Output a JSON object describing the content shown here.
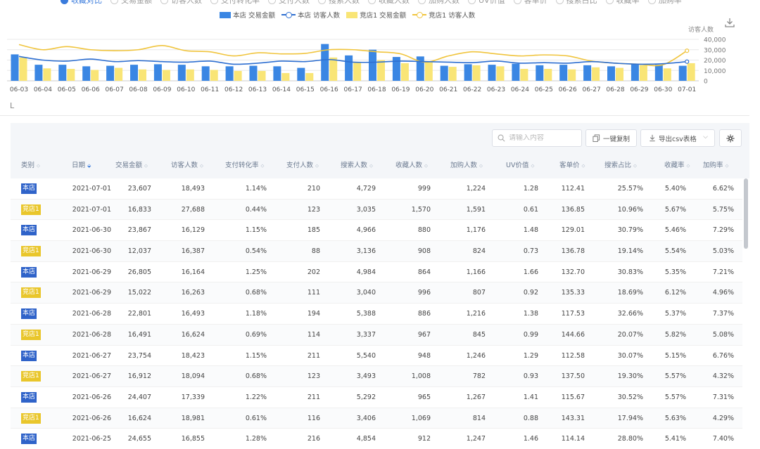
{
  "metrics": [
    {
      "label": "收藏对比",
      "checked": true
    },
    {
      "label": "交易金额",
      "checked": false
    },
    {
      "label": "访客人数",
      "checked": false
    },
    {
      "label": "支付转化率",
      "checked": false
    },
    {
      "label": "支付人数",
      "checked": false
    },
    {
      "label": "搜索人数",
      "checked": false
    },
    {
      "label": "收藏人数",
      "checked": false
    },
    {
      "label": "加购人数",
      "checked": false
    },
    {
      "label": "UV价值",
      "checked": false
    },
    {
      "label": "客单价",
      "checked": false
    },
    {
      "label": "搜索占比",
      "checked": false
    },
    {
      "label": "收藏率",
      "checked": false
    },
    {
      "label": "加购率",
      "checked": false
    }
  ],
  "legend": {
    "s1": "本店 交易金额",
    "s2": "本店 访客人数",
    "s3": "竞店1 交易金额",
    "s4": "竞店1 访客人数"
  },
  "colors": {
    "own_bar": "#3a86e3",
    "own_line": "#2e6fd1",
    "comp_bar": "#f9e576",
    "comp_line": "#f0c43c",
    "tag_own": "#2f63c9",
    "tag_comp": "#e9c62b"
  },
  "icons": [
    "download-icon",
    "collapse-icon",
    "search-icon",
    "copy-icon",
    "export-icon",
    "chevron-down-icon",
    "gear-icon",
    "sort-icon"
  ],
  "chart_data": {
    "type": "bar",
    "categories": [
      "06-03",
      "06-04",
      "06-05",
      "06-06",
      "06-07",
      "06-08",
      "06-09",
      "06-10",
      "06-11",
      "06-12",
      "06-13",
      "06-14",
      "06-15",
      "06-16",
      "06-17",
      "06-18",
      "06-19",
      "06-20",
      "06-21",
      "06-22",
      "06-23",
      "06-24",
      "06-25",
      "06-26",
      "06-27",
      "06-28",
      "06-29",
      "06-30",
      "07-01"
    ],
    "y_axis_label": "访客人数",
    "y_ticks": [
      "40,000",
      "30,000",
      "20,000",
      "10,000",
      "0"
    ],
    "ylim": [
      0,
      40000
    ],
    "grid": true,
    "legend_position": "top-center",
    "series": [
      {
        "name": "本店 交易金额",
        "type": "bar",
        "values": [
          25500,
          15500,
          15500,
          14000,
          14500,
          15500,
          16000,
          15500,
          14000,
          14000,
          14500,
          14000,
          12500,
          35500,
          24500,
          30000,
          23000,
          23500,
          14500,
          16000,
          15500,
          16500,
          15000,
          15500,
          15000,
          14000,
          16500,
          15500,
          14500
        ]
      },
      {
        "name": "竞店1 交易金额",
        "type": "bar",
        "values": [
          22500,
          12000,
          11500,
          10500,
          12500,
          11000,
          10500,
          11000,
          10500,
          9500,
          9500,
          7500,
          7500,
          22500,
          18000,
          20000,
          17000,
          19000,
          13500,
          15000,
          14000,
          11500,
          11500,
          11000,
          13000,
          12500,
          15000,
          12000,
          17000
        ]
      },
      {
        "name": "本店 访客人数",
        "type": "line",
        "values": [
          23500,
          20000,
          19000,
          21000,
          18500,
          19500,
          18500,
          18000,
          19000,
          16000,
          17000,
          19000,
          18500,
          20500,
          18000,
          18000,
          19000,
          18500,
          18000,
          17500,
          19000,
          17000,
          17500,
          17000,
          18500,
          17000,
          16000,
          16500,
          18500
        ]
      },
      {
        "name": "竞店1 访客人数",
        "type": "line",
        "values": [
          35000,
          30000,
          33000,
          30000,
          29000,
          30000,
          34000,
          29000,
          28000,
          24000,
          27000,
          26000,
          26500,
          30000,
          30000,
          28000,
          26000,
          18000,
          24000,
          28000,
          26000,
          24000,
          25000,
          24000,
          19000,
          17000,
          16000,
          15500,
          29000
        ]
      }
    ]
  },
  "table": {
    "search_placeholder": "请输入内容",
    "copy_label": "一键复制",
    "export_label": "导出csv表格",
    "columns": [
      "类别",
      "日期",
      "交易金额",
      "访客人数",
      "支付转化率",
      "支付人数",
      "搜索人数",
      "收藏人数",
      "加购人数",
      "UV价值",
      "客单价",
      "搜索占比",
      "收藏率",
      "加购率"
    ],
    "rows": [
      {
        "cat": "本店",
        "kind": "own",
        "cells": [
          "2021-07-01",
          "23,607",
          "18,493",
          "1.14%",
          "210",
          "4,729",
          "999",
          "1,224",
          "1.28",
          "112.41",
          "25.57%",
          "5.40%",
          "6.62%"
        ]
      },
      {
        "cat": "竞店1",
        "kind": "comp",
        "cells": [
          "2021-07-01",
          "16,833",
          "27,688",
          "0.44%",
          "123",
          "3,035",
          "1,570",
          "1,591",
          "0.61",
          "136.85",
          "10.96%",
          "5.67%",
          "5.75%"
        ]
      },
      {
        "cat": "本店",
        "kind": "own",
        "cells": [
          "2021-06-30",
          "23,867",
          "16,129",
          "1.15%",
          "185",
          "4,966",
          "880",
          "1,176",
          "1.48",
          "129.01",
          "30.79%",
          "5.46%",
          "7.29%"
        ]
      },
      {
        "cat": "竞店1",
        "kind": "comp",
        "cells": [
          "2021-06-30",
          "12,037",
          "16,387",
          "0.54%",
          "88",
          "3,136",
          "908",
          "824",
          "0.73",
          "136.78",
          "19.14%",
          "5.54%",
          "5.03%"
        ]
      },
      {
        "cat": "本店",
        "kind": "own",
        "cells": [
          "2021-06-29",
          "26,805",
          "16,164",
          "1.25%",
          "202",
          "4,984",
          "864",
          "1,166",
          "1.66",
          "132.70",
          "30.83%",
          "5.35%",
          "7.21%"
        ]
      },
      {
        "cat": "竞店1",
        "kind": "comp",
        "cells": [
          "2021-06-29",
          "15,022",
          "16,263",
          "0.68%",
          "111",
          "3,040",
          "996",
          "807",
          "0.92",
          "135.33",
          "18.69%",
          "6.12%",
          "4.96%"
        ]
      },
      {
        "cat": "本店",
        "kind": "own",
        "cells": [
          "2021-06-28",
          "22,801",
          "16,493",
          "1.18%",
          "194",
          "5,388",
          "886",
          "1,216",
          "1.38",
          "117.53",
          "32.66%",
          "5.37%",
          "7.37%"
        ]
      },
      {
        "cat": "竞店1",
        "kind": "comp",
        "cells": [
          "2021-06-28",
          "16,491",
          "16,624",
          "0.69%",
          "114",
          "3,337",
          "967",
          "845",
          "0.99",
          "144.66",
          "20.07%",
          "5.82%",
          "5.08%"
        ]
      },
      {
        "cat": "本店",
        "kind": "own",
        "cells": [
          "2021-06-27",
          "23,754",
          "18,423",
          "1.15%",
          "211",
          "5,540",
          "948",
          "1,246",
          "1.29",
          "112.58",
          "30.07%",
          "5.15%",
          "6.76%"
        ]
      },
      {
        "cat": "竞店1",
        "kind": "comp",
        "cells": [
          "2021-06-27",
          "16,912",
          "18,094",
          "0.68%",
          "123",
          "3,493",
          "1,008",
          "782",
          "0.93",
          "137.50",
          "19.30%",
          "5.57%",
          "4.32%"
        ]
      },
      {
        "cat": "本店",
        "kind": "own",
        "cells": [
          "2021-06-26",
          "24,407",
          "17,339",
          "1.22%",
          "211",
          "5,292",
          "965",
          "1,267",
          "1.41",
          "115.67",
          "30.52%",
          "5.57%",
          "7.31%"
        ]
      },
      {
        "cat": "竞店1",
        "kind": "comp",
        "cells": [
          "2021-06-26",
          "16,624",
          "18,981",
          "0.61%",
          "116",
          "3,406",
          "1,069",
          "814",
          "0.88",
          "143.31",
          "17.94%",
          "5.63%",
          "4.29%"
        ]
      },
      {
        "cat": "本店",
        "kind": "own",
        "cells": [
          "2021-06-25",
          "24,655",
          "16,855",
          "1.28%",
          "216",
          "4,854",
          "912",
          "1,247",
          "1.46",
          "114.14",
          "28.80%",
          "5.41%",
          "7.40%"
        ]
      }
    ]
  }
}
